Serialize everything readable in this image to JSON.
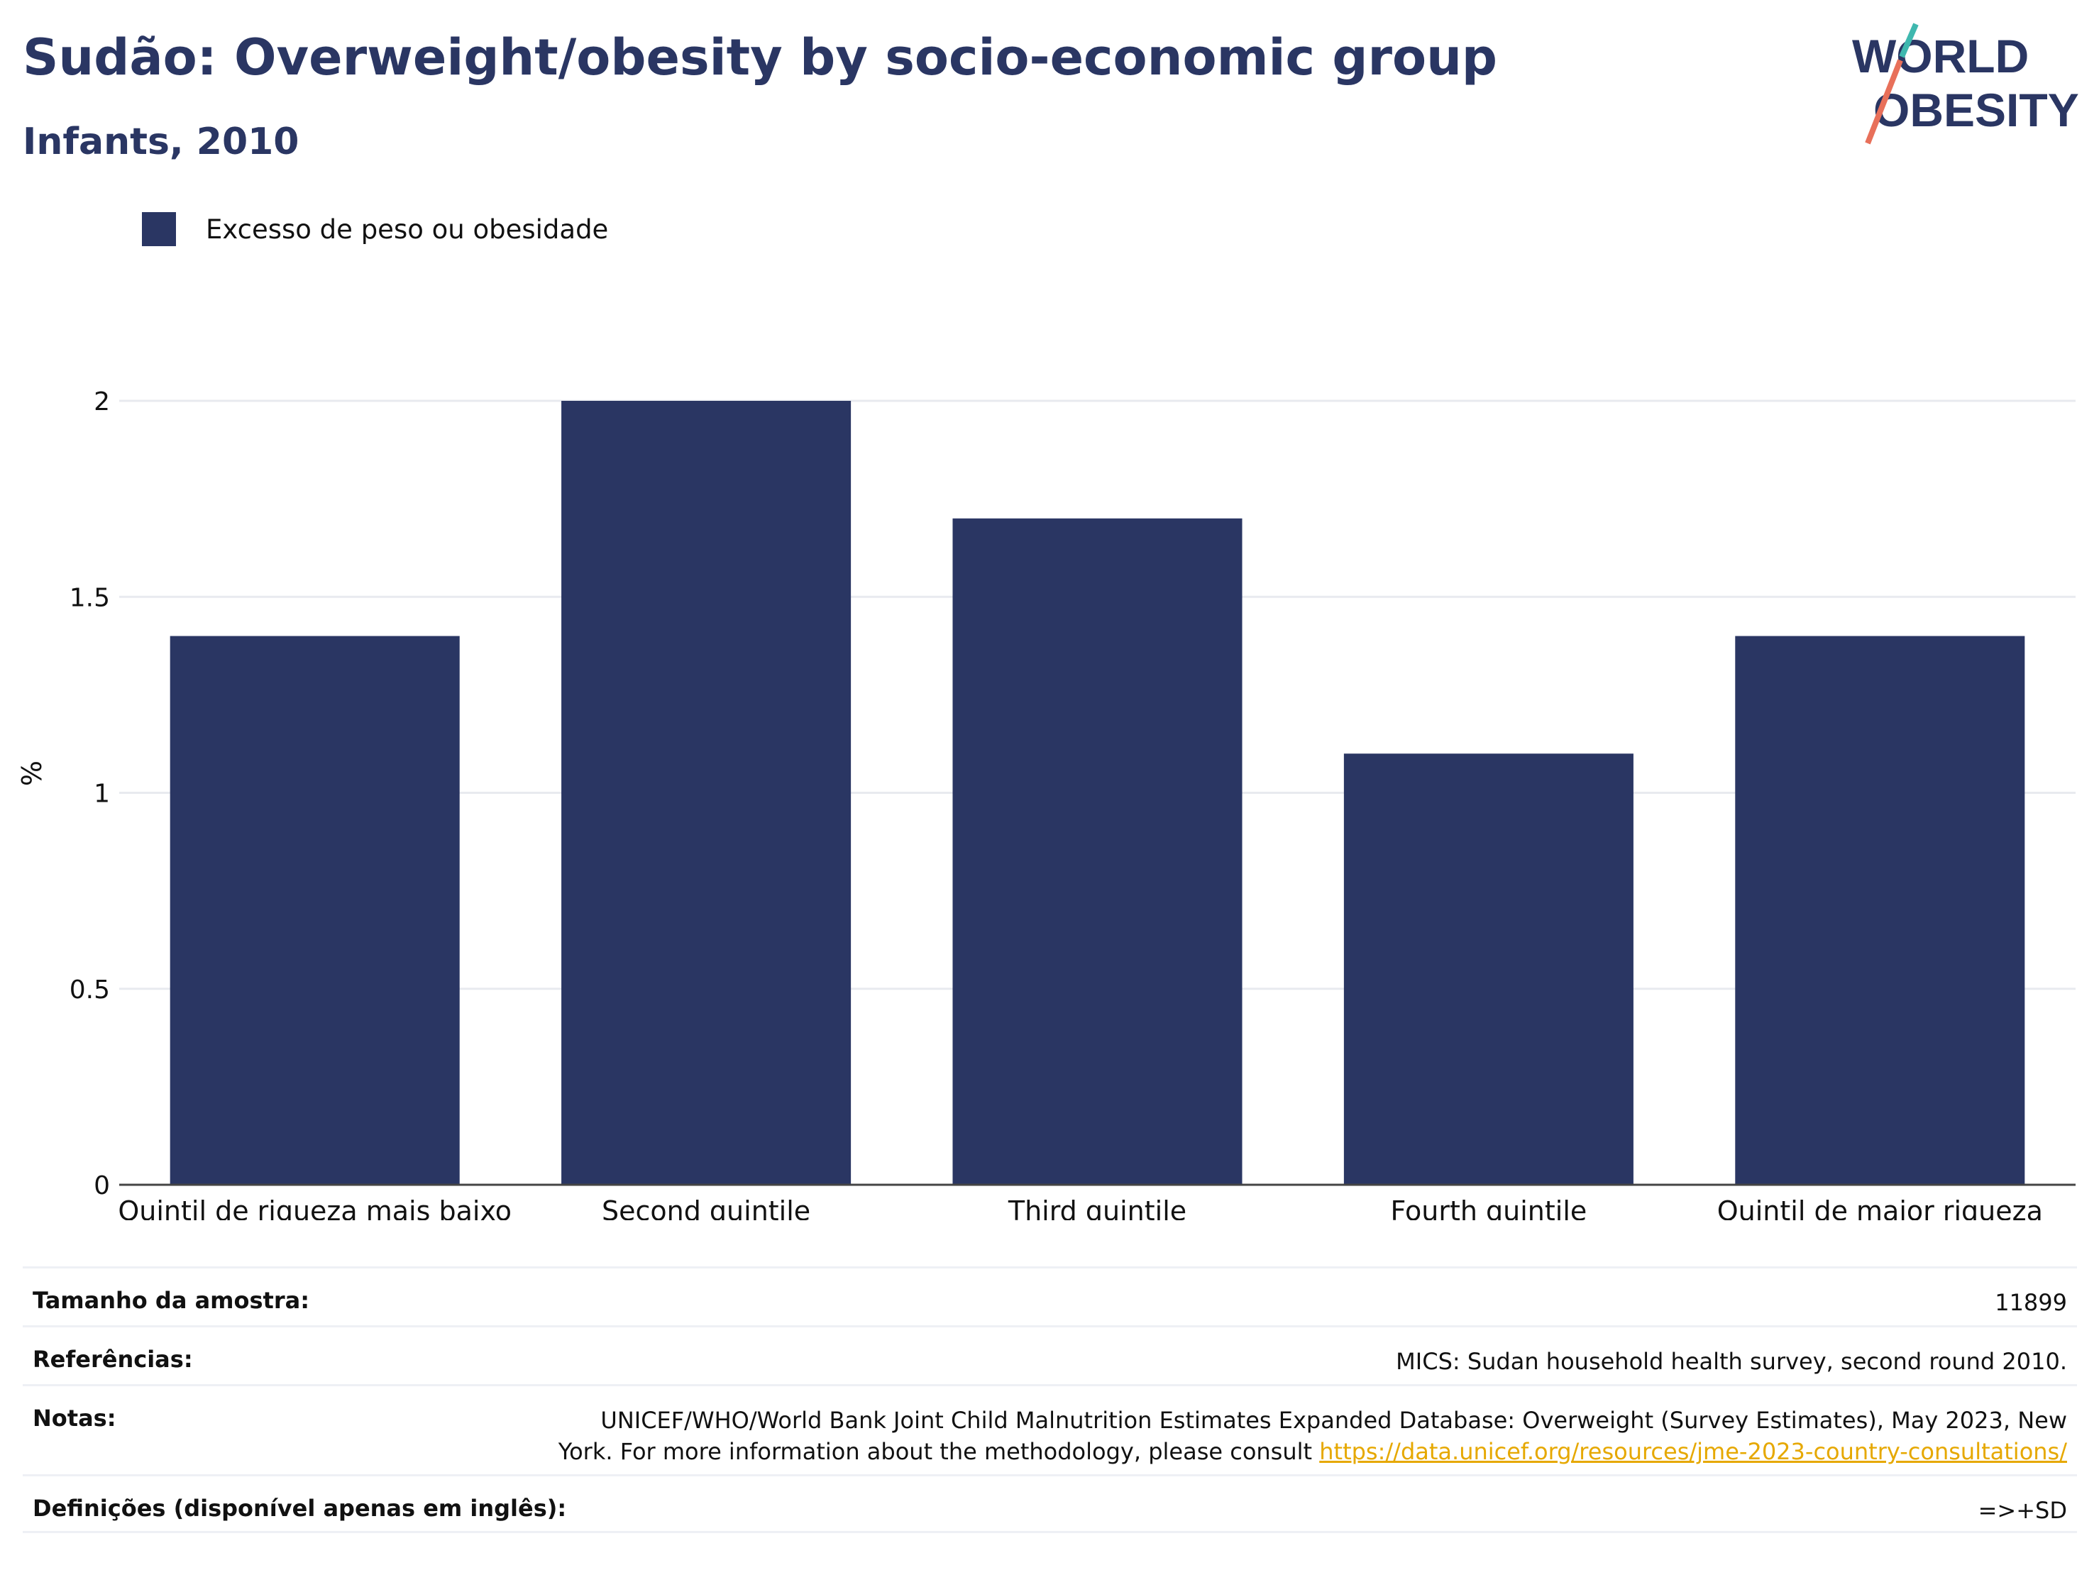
{
  "header": {
    "title": "Sudão: Overweight/obesity by socio-economic group",
    "subtitle": "Infants, 2010"
  },
  "logo": {
    "line1": "WORLD",
    "line2": "OBESITY"
  },
  "legend": {
    "label": "Excesso de peso ou obesidade",
    "color": "#2a3663"
  },
  "chart_data": {
    "type": "bar",
    "categories": [
      "Quintil de riqueza mais baixo",
      "Second quintile",
      "Third quintile",
      "Fourth quintile",
      "Quintil de maior riqueza"
    ],
    "series": [
      {
        "name": "Excesso de peso ou obesidade",
        "values": [
          1.4,
          2.0,
          1.7,
          1.1,
          1.4
        ]
      }
    ],
    "ylabel": "%",
    "xlabel": "",
    "ylim": [
      0,
      2.2
    ],
    "yticks": [
      "0",
      "0.5",
      "1",
      "1.5",
      "2"
    ],
    "grid": true,
    "legend_position": "top-left",
    "bar_color": "#2a3663"
  },
  "info": {
    "sample_label": "Tamanho da amostra:",
    "sample_value": "11899",
    "references_label": "Referências:",
    "references_value": "MICS: Sudan household health survey, second round 2010.",
    "notes_label": "Notas:",
    "notes_text": "UNICEF/WHO/World Bank Joint Child Malnutrition Estimates Expanded Database: Overweight (Survey Estimates), May 2023, New York. For more information about the methodology, please consult ",
    "notes_link": "https://data.unicef.org/resources/jme-2023-country-consultations/",
    "definitions_label": "Definições (disponível apenas em inglês):",
    "definitions_value": "=>+SD"
  }
}
